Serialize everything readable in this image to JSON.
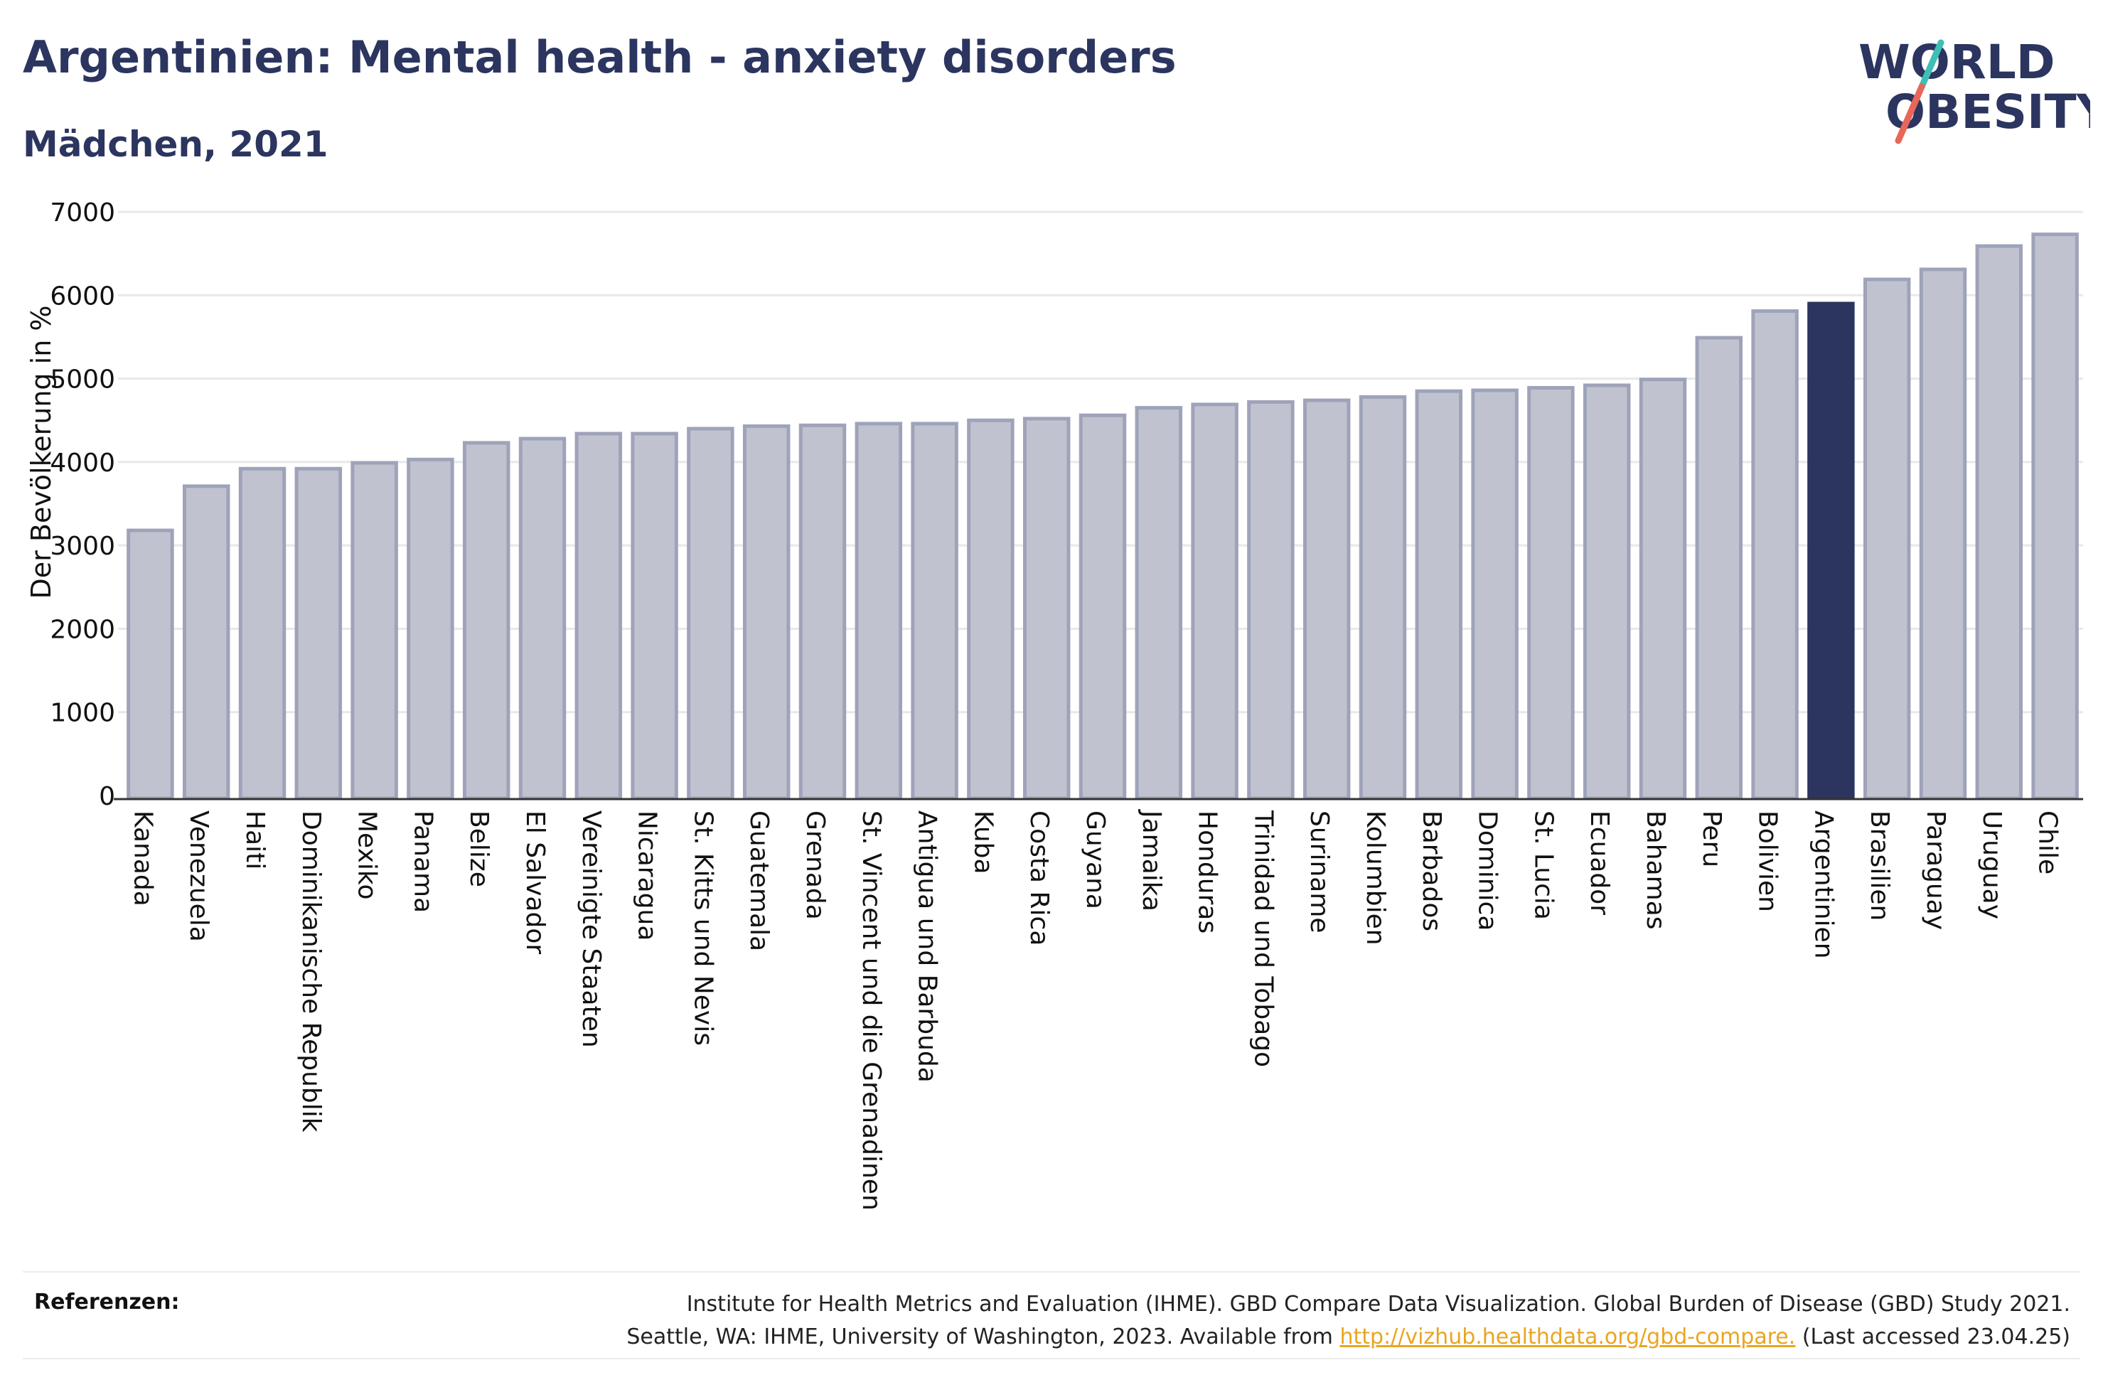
{
  "header": {
    "title": "Argentinien: Mental health - anxiety disorders",
    "subtitle": "Mädchen, 2021"
  },
  "logo": {
    "line1": "WORLD",
    "line2": "OBESITY"
  },
  "colors": {
    "bar": "#c0c3cf",
    "bar_stroke": "#9ea3b9",
    "highlight": "#2b355f",
    "title": "#2b355f",
    "grid": "#e8e8e8",
    "link": "#e9a521",
    "logo_teal": "#3fbfb4",
    "logo_red": "#e8665a"
  },
  "chart_data": {
    "type": "bar",
    "title": "Argentinien: Mental health - anxiety disorders",
    "subtitle": "Mädchen, 2021",
    "xlabel": "",
    "ylabel": "Der Bevölkerung in %",
    "ylim": [
      0,
      7000
    ],
    "yticks": [
      0,
      1000,
      2000,
      3000,
      4000,
      5000,
      6000,
      7000
    ],
    "grid": true,
    "highlight": "Argentinien",
    "categories": [
      "Kanada",
      "Venezuela",
      "Haiti",
      "Dominikanische Republik",
      "Mexiko",
      "Panama",
      "Belize",
      "El Salvador",
      "Vereinigte Staaten",
      "Nicaragua",
      "St. Kitts und Nevis",
      "Guatemala",
      "Grenada",
      "St. Vincent und die Grenadinen",
      "Antigua und Barbuda",
      "Kuba",
      "Costa Rica",
      "Guyana",
      "Jamaika",
      "Honduras",
      "Trinidad und Tobago",
      "Suriname",
      "Kolumbien",
      "Barbados",
      "Dominica",
      "St. Lucia",
      "Ecuador",
      "Bahamas",
      "Peru",
      "Bolivien",
      "Argentinien",
      "Brasilien",
      "Paraguay",
      "Uruguay",
      "Chile"
    ],
    "values": [
      3180,
      3710,
      3920,
      3920,
      3990,
      4030,
      4230,
      4280,
      4340,
      4340,
      4400,
      4430,
      4440,
      4460,
      4460,
      4500,
      4520,
      4560,
      4650,
      4690,
      4720,
      4740,
      4780,
      4850,
      4860,
      4890,
      4920,
      4990,
      5490,
      5810,
      5900,
      6190,
      6310,
      6590,
      6730
    ]
  },
  "references": {
    "label": "Referenzen:",
    "line1": "Institute for Health Metrics and Evaluation (IHME). GBD Compare Data Visualization. Global Burden of Disease (GBD) Study 2021.",
    "line2_pre": "Seattle, WA: IHME, University of Washington, 2023. Available from ",
    "link": "http://vizhub.healthdata.org/gbd-compare.",
    "line2_post": " (Last accessed 23.04.25)"
  }
}
